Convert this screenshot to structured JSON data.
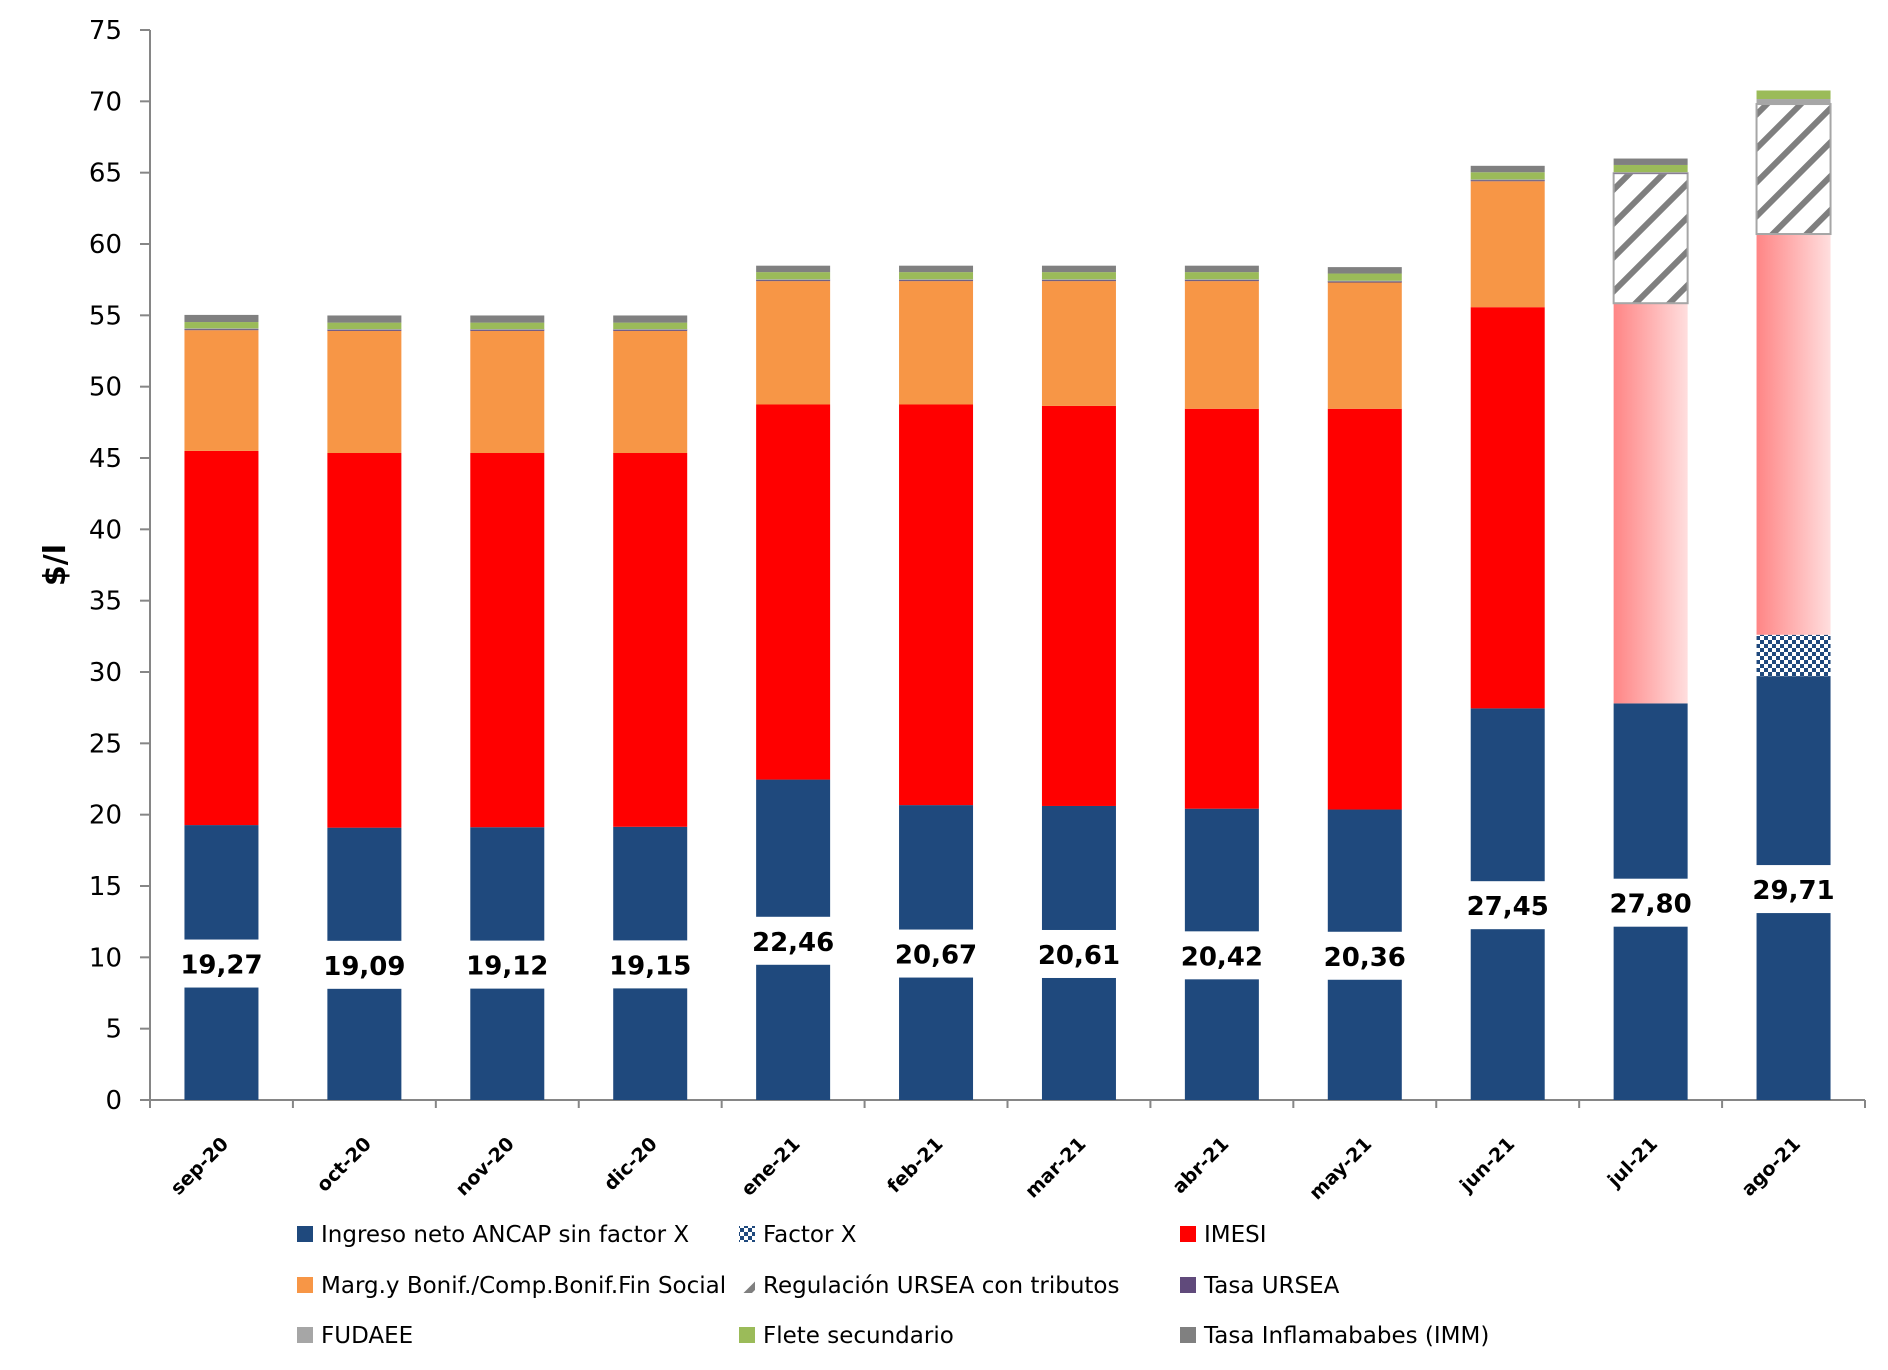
{
  "chart_data": {
    "type": "bar",
    "stacked": true,
    "title": "",
    "xlabel": "",
    "ylabel": "$/l",
    "ylim": [
      0,
      75
    ],
    "yticks": [
      0,
      5,
      10,
      15,
      20,
      25,
      30,
      35,
      40,
      45,
      50,
      55,
      60,
      65,
      70,
      75
    ],
    "grid": false,
    "legend_position": "bottom",
    "categories": [
      "sep-20",
      "oct-20",
      "nov-20",
      "dic-20",
      "ene-21",
      "feb-21",
      "mar-21",
      "abr-21",
      "may-21",
      "jun-21",
      "jul-21",
      "ago-21"
    ],
    "data_labels": [
      "19,27",
      "19,09",
      "19,12",
      "19,15",
      "22,46",
      "20,67",
      "20,61",
      "20,42",
      "20,36",
      "27,45",
      "27,80",
      "29,71"
    ],
    "series": [
      {
        "name": "Ingreso neto ANCAP sin factor X",
        "color": "#1f497d",
        "pattern": "solid",
        "values": [
          19.27,
          19.09,
          19.12,
          19.15,
          22.46,
          20.67,
          20.61,
          20.42,
          20.36,
          27.45,
          27.8,
          29.71
        ]
      },
      {
        "name": "Factor X",
        "color": "#1f497d",
        "pattern": "checker",
        "values": [
          0,
          0,
          0,
          0,
          0,
          0,
          0,
          0,
          0,
          0,
          0,
          2.9
        ]
      },
      {
        "name": "IMESI",
        "color": "#ff0000",
        "pattern": "solid",
        "values": [
          26.23,
          26.26,
          26.23,
          26.2,
          26.29,
          28.08,
          28.04,
          28.03,
          28.09,
          28.12,
          28.05,
          28.09
        ],
        "highlight_color": "#ff8080"
      },
      {
        "name": "Marg.y Bonif./Comp.Bonif.Fin Social",
        "color": "#f79646",
        "pattern": "solid",
        "values": [
          8.46,
          8.56,
          8.56,
          8.56,
          8.65,
          8.65,
          8.75,
          8.95,
          8.85,
          8.83,
          0,
          0
        ]
      },
      {
        "name": "Regulación URSEA con tributos",
        "color": "#7f7f7f",
        "pattern": "diagonal",
        "values": [
          0,
          0,
          0,
          0,
          0,
          0,
          0,
          0,
          0,
          0,
          9.11,
          9.11
        ]
      },
      {
        "name": "Tasa URSEA",
        "color": "#604a7b",
        "pattern": "solid",
        "values": [
          0.1,
          0.1,
          0.1,
          0.1,
          0.1,
          0.1,
          0.1,
          0.1,
          0.1,
          0.1,
          0.05,
          0
        ]
      },
      {
        "name": "FUDAEE",
        "color": "#a6a6a6",
        "pattern": "solid",
        "values": [
          0.03,
          0.03,
          0.03,
          0.03,
          0.03,
          0.03,
          0.03,
          0.03,
          0.03,
          0.03,
          0.03,
          0.35
        ]
      },
      {
        "name": "Flete secundario",
        "color": "#9bbb59",
        "pattern": "solid",
        "values": [
          0.44,
          0.45,
          0.45,
          0.45,
          0.5,
          0.5,
          0.5,
          0.5,
          0.5,
          0.5,
          0.5,
          0.6
        ]
      },
      {
        "name": "Tasa Inflamababes (IMM)",
        "color": "#808080",
        "pattern": "solid",
        "values": [
          0.5,
          0.5,
          0.5,
          0.5,
          0.45,
          0.45,
          0.45,
          0.45,
          0.45,
          0.45,
          0.45,
          0
        ]
      }
    ],
    "legend": [
      {
        "label": "Ingreso neto ANCAP sin factor X",
        "series": 0
      },
      {
        "label": "Factor X",
        "series": 1
      },
      {
        "label": "IMESI",
        "series": 2
      },
      {
        "label": "Marg.y Bonif./Comp.Bonif.Fin Social",
        "series": 3
      },
      {
        "label": "Regulación URSEA con tributos",
        "series": 4
      },
      {
        "label": "Tasa URSEA",
        "series": 5
      },
      {
        "label": "FUDAEE",
        "series": 6
      },
      {
        "label": "Flete secundario",
        "series": 7
      },
      {
        "label": "Tasa Inflamababes (IMM)",
        "series": 8
      }
    ],
    "imesi_highlight_categories": [
      "jul-21",
      "ago-21"
    ]
  }
}
